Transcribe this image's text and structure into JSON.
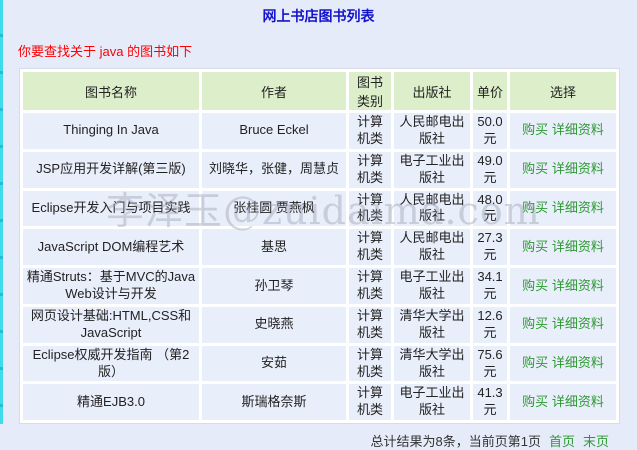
{
  "page": {
    "title": "网上书店图书列表",
    "subtitle": "你要查找关于 java 的图书如下",
    "watermark": "李泽玉@zuidaima.com"
  },
  "table": {
    "headers": {
      "name": "图书名称",
      "author": "作者",
      "category": "图书类别",
      "publisher": "出版社",
      "price": "单价",
      "select": "选择"
    },
    "actions": {
      "buy": "购买",
      "detail": "详细资料"
    },
    "rows": [
      {
        "name": "Thinging In Java",
        "author": "Bruce Eckel",
        "category": "计算机类",
        "publisher": "人民邮电出版社",
        "price": "50.0 元"
      },
      {
        "name": "JSP应用开发详解(第三版)",
        "author": "刘晓华，张健，周慧贞",
        "category": "计算机类",
        "publisher": "电子工业出版社",
        "price": "49.0 元"
      },
      {
        "name": "Eclipse开发入门与项目实践",
        "author": "张桂圆 贾燕枫",
        "category": "计算机类",
        "publisher": "人民邮电出版社",
        "price": "48.0 元"
      },
      {
        "name": "JavaScript DOM编程艺术",
        "author": "基思",
        "category": "计算机类",
        "publisher": "人民邮电出版社",
        "price": "27.3 元"
      },
      {
        "name": "精通Struts：基于MVC的Java Web设计与开发",
        "author": "孙卫琴",
        "category": "计算机类",
        "publisher": "电子工业出版社",
        "price": "34.1 元"
      },
      {
        "name": "网页设计基础:HTML,CSS和JavaScript",
        "author": "史晓燕",
        "category": "计算机类",
        "publisher": "清华大学出版社",
        "price": "12.6 元"
      },
      {
        "name": "Eclipse权威开发指南 （第2版）",
        "author": "安茹",
        "category": "计算机类",
        "publisher": "清华大学出版社",
        "price": "75.6 元"
      },
      {
        "name": "精通EJB3.0",
        "author": "斯瑞格奈斯",
        "category": "计算机类",
        "publisher": "电子工业出版社",
        "price": "41.3 元"
      }
    ]
  },
  "footer": {
    "summary": "总计结果为8条，当前页第1页",
    "first": "首页",
    "last": "末页"
  },
  "colors": {
    "page_bg": "#e6ebfa",
    "title_blue": "#1313cc",
    "subtitle_red": "#fe0000",
    "header_green_bg": "#ddefca",
    "cell_bg": "#e9eefb",
    "link_green": "#2e9933",
    "edge_strip_cyan": "#3edbeb"
  }
}
